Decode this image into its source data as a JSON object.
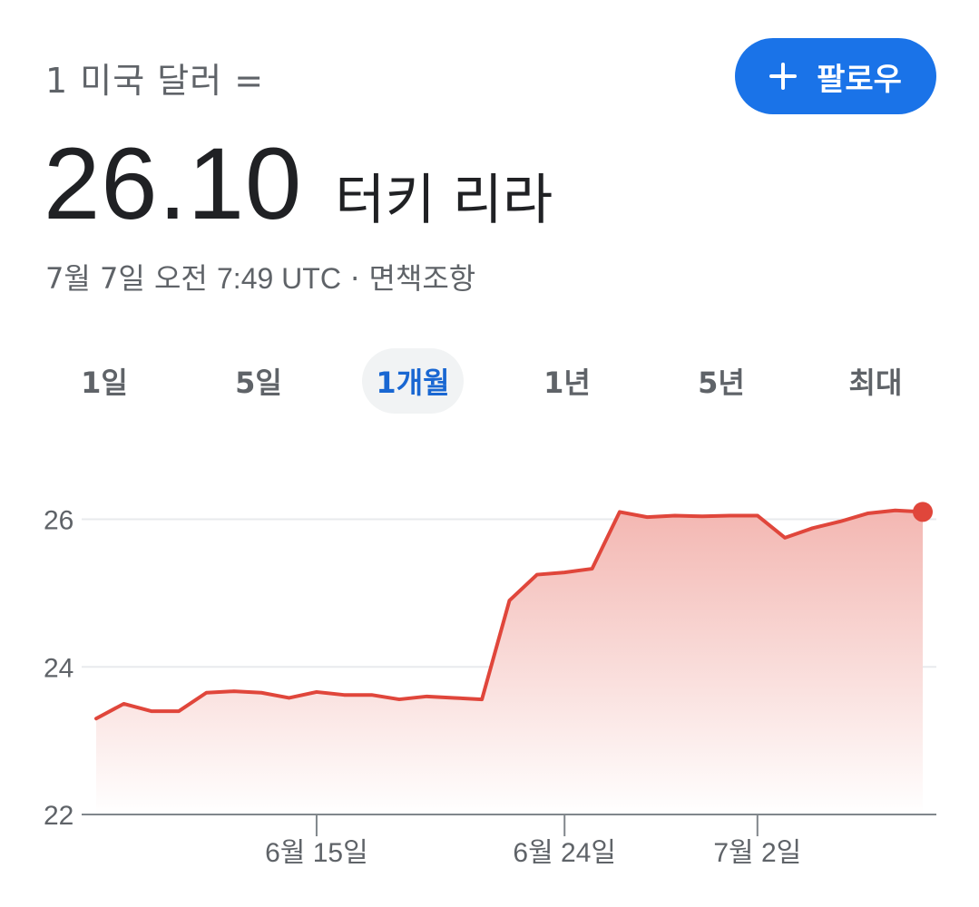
{
  "header": {
    "conversion_label": "1 미국 달러 =",
    "follow_label": "팔로우"
  },
  "rate": {
    "value": "26.10",
    "currency_name": "터키 리라"
  },
  "timestamp": {
    "date": "7월 7일 오전",
    "time": "7:49 UTC",
    "separator": "·",
    "disclaimer": "면책조항"
  },
  "tabs": [
    {
      "label": "1일",
      "active": false
    },
    {
      "label": "5일",
      "active": false
    },
    {
      "label": "1개월",
      "active": true
    },
    {
      "label": "1년",
      "active": false
    },
    {
      "label": "5년",
      "active": false
    },
    {
      "label": "최대",
      "active": false
    }
  ],
  "colors": {
    "accent": "#1a73e8",
    "line": "#e0463b",
    "fill_top": "#f3b7b2",
    "grid": "#e8eaed"
  },
  "chart_data": {
    "type": "area",
    "ylim": [
      22,
      26.4
    ],
    "yticks": [
      "22",
      "24",
      "26"
    ],
    "xticks": [
      {
        "label": "6월 15일",
        "index": 8
      },
      {
        "label": "6월 24일",
        "index": 17
      },
      {
        "label": "7월 2일",
        "index": 24
      }
    ],
    "series": [
      {
        "values": [
          23.3,
          23.5,
          23.4,
          23.4,
          23.65,
          23.67,
          23.65,
          23.58,
          23.66,
          23.62,
          23.62,
          23.56,
          23.6,
          23.58,
          23.56,
          24.9,
          25.25,
          25.28,
          25.33,
          26.1,
          26.03,
          26.05,
          26.04,
          26.05,
          26.05,
          25.75,
          25.88,
          25.97,
          26.08,
          26.12,
          26.1
        ]
      }
    ]
  }
}
